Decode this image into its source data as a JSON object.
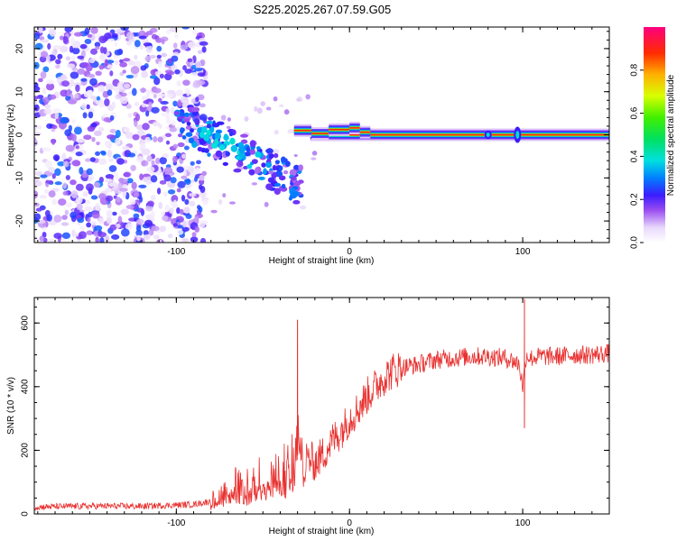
{
  "title": "S225.2025.267.07.59.G05",
  "chart_data": [
    {
      "type": "heatmap",
      "name": "spectrogram",
      "xlabel": "Height of straight line (km)",
      "ylabel": "Frequency (Hz)",
      "xlim": [
        -182,
        150
      ],
      "ylim": [
        -25,
        25
      ],
      "xticks": [
        -100,
        0,
        100
      ],
      "yticks": [
        -20,
        -10,
        0,
        10,
        20
      ],
      "colorbar": {
        "label": "Normalized spectral amplitude",
        "range": [
          0,
          1
        ],
        "ticks": [
          "0.0",
          "0.2",
          "0.4",
          "0.6",
          "0.8"
        ],
        "colors": [
          "#ffffff",
          "#c7a6f2",
          "#7a1fe0",
          "#1a1aff",
          "#00a0ff",
          "#00e0e0",
          "#00e000",
          "#c8ff00",
          "#ffc000",
          "#ff3000",
          "#ff007f"
        ]
      },
      "features": {
        "noise_region_x": [
          -182,
          -88
        ],
        "descending_streak": {
          "x": [
            -100,
            -28
          ],
          "freq": [
            4,
            -12
          ]
        },
        "carrier": {
          "x": [
            -32,
            150
          ],
          "freq": 0,
          "peak_amplitude": 0.9
        }
      }
    },
    {
      "type": "line",
      "name": "snr",
      "xlabel": "Height of straight line (km)",
      "ylabel": "SNR (10 * v/v)",
      "xlim": [
        -182,
        150
      ],
      "ylim": [
        0,
        680
      ],
      "xticks": [
        -100,
        0,
        100
      ],
      "yticks": [
        0,
        200,
        400,
        600
      ],
      "color": "#e8312f",
      "series": [
        {
          "name": "SNR",
          "x": [
            -182,
            -160,
            -140,
            -120,
            -100,
            -90,
            -80,
            -75,
            -70,
            -65,
            -60,
            -55,
            -50,
            -45,
            -40,
            -35,
            -32,
            -30,
            -28,
            -25,
            -20,
            -15,
            -10,
            -5,
            0,
            5,
            10,
            15,
            20,
            25,
            30,
            40,
            50,
            60,
            70,
            80,
            90,
            95,
            98,
            100,
            102,
            105,
            110,
            120,
            130,
            140,
            150
          ],
          "values": [
            22,
            24,
            25,
            24,
            28,
            30,
            40,
            60,
            90,
            100,
            80,
            110,
            120,
            130,
            140,
            140,
            200,
            260,
            220,
            180,
            160,
            190,
            230,
            260,
            300,
            330,
            370,
            400,
            430,
            450,
            460,
            470,
            485,
            490,
            495,
            495,
            490,
            480,
            470,
            400,
            500,
            490,
            495,
            495,
            500,
            500,
            505
          ]
        }
      ],
      "spikes": [
        {
          "x": -30,
          "value": 610
        },
        {
          "x": 101,
          "value": 675
        },
        {
          "x": 101,
          "value": 270
        }
      ]
    }
  ]
}
